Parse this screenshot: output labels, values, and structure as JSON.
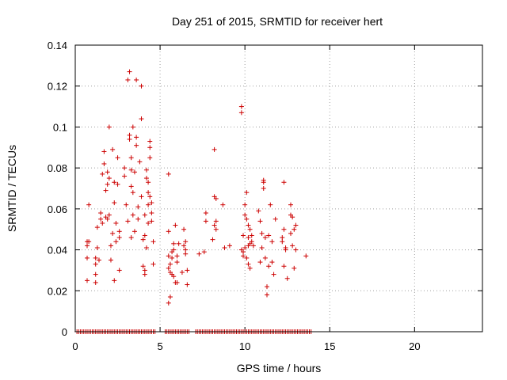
{
  "chart_data": {
    "type": "scatter",
    "title": "Day 251 of 2015, SRMTID for receiver hert",
    "xlabel": "GPS time / hours",
    "ylabel": "SRMTID / TECUs",
    "xlim": [
      0,
      24
    ],
    "ylim": [
      0,
      0.14
    ],
    "xticks": [
      "0",
      "5",
      "10",
      "15",
      "20"
    ],
    "yticks": [
      "0",
      "0.02",
      "0.04",
      "0.06",
      "0.08",
      "0.1",
      "0.12",
      "0.14"
    ],
    "grid": true,
    "legend": "none",
    "marker": "+",
    "color": "#cc0000",
    "series": [
      {
        "values": [
          [
            0.7,
            0.025
          ],
          [
            0.7,
            0.036
          ],
          [
            0.7,
            0.042
          ],
          [
            0.7,
            0.044
          ],
          [
            0.8,
            0.062
          ],
          [
            0.8,
            0.044
          ],
          [
            1.2,
            0.024
          ],
          [
            1.2,
            0.028
          ],
          [
            1.2,
            0.033
          ],
          [
            1.2,
            0.036
          ],
          [
            1.3,
            0.041
          ],
          [
            1.3,
            0.051
          ],
          [
            1.4,
            0.035
          ],
          [
            1.5,
            0.055
          ],
          [
            1.5,
            0.058
          ],
          [
            1.6,
            0.077
          ],
          [
            1.6,
            0.053
          ],
          [
            1.7,
            0.082
          ],
          [
            1.7,
            0.088
          ],
          [
            1.8,
            0.069
          ],
          [
            1.8,
            0.056
          ],
          [
            1.9,
            0.055
          ],
          [
            1.9,
            0.072
          ],
          [
            1.9,
            0.078
          ],
          [
            2.0,
            0.1
          ],
          [
            2.0,
            0.057
          ],
          [
            2.0,
            0.075
          ],
          [
            2.1,
            0.035
          ],
          [
            2.1,
            0.042
          ],
          [
            2.2,
            0.048
          ],
          [
            2.2,
            0.089
          ],
          [
            2.3,
            0.025
          ],
          [
            2.3,
            0.063
          ],
          [
            2.3,
            0.073
          ],
          [
            2.4,
            0.044
          ],
          [
            2.4,
            0.053
          ],
          [
            2.5,
            0.085
          ],
          [
            2.5,
            0.072
          ],
          [
            2.6,
            0.03
          ],
          [
            2.6,
            0.046
          ],
          [
            2.6,
            0.049
          ],
          [
            2.9,
            0.076
          ],
          [
            2.9,
            0.08
          ],
          [
            3.0,
            0.062
          ],
          [
            3.1,
            0.123
          ],
          [
            3.1,
            0.054
          ],
          [
            3.2,
            0.127
          ],
          [
            3.2,
            0.096
          ],
          [
            3.2,
            0.094
          ],
          [
            3.3,
            0.046
          ],
          [
            3.3,
            0.085
          ],
          [
            3.3,
            0.071
          ],
          [
            3.3,
            0.079
          ],
          [
            3.4,
            0.1
          ],
          [
            3.4,
            0.068
          ],
          [
            3.4,
            0.057
          ],
          [
            3.5,
            0.078
          ],
          [
            3.5,
            0.049
          ],
          [
            3.6,
            0.123
          ],
          [
            3.6,
            0.091
          ],
          [
            3.6,
            0.095
          ],
          [
            3.7,
            0.061
          ],
          [
            3.7,
            0.055
          ],
          [
            3.8,
            0.083
          ],
          [
            3.9,
            0.12
          ],
          [
            3.9,
            0.104
          ],
          [
            3.9,
            0.066
          ],
          [
            4.0,
            0.032
          ],
          [
            4.0,
            0.045
          ],
          [
            4.1,
            0.03
          ],
          [
            4.1,
            0.028
          ],
          [
            4.1,
            0.057
          ],
          [
            4.1,
            0.047
          ],
          [
            4.2,
            0.079
          ],
          [
            4.2,
            0.075
          ],
          [
            4.2,
            0.041
          ],
          [
            4.3,
            0.073
          ],
          [
            4.3,
            0.068
          ],
          [
            4.3,
            0.062
          ],
          [
            4.3,
            0.053
          ],
          [
            4.4,
            0.093
          ],
          [
            4.4,
            0.09
          ],
          [
            4.4,
            0.085
          ],
          [
            4.4,
            0.066
          ],
          [
            4.5,
            0.058
          ],
          [
            4.5,
            0.054
          ],
          [
            4.5,
            0.063
          ],
          [
            4.6,
            0.044
          ],
          [
            4.6,
            0.033
          ],
          [
            5.5,
            0.077
          ],
          [
            5.5,
            0.049
          ],
          [
            5.5,
            0.037
          ],
          [
            5.5,
            0.031
          ],
          [
            5.5,
            0.014
          ],
          [
            5.6,
            0.017
          ],
          [
            5.6,
            0.033
          ],
          [
            5.6,
            0.029
          ],
          [
            5.7,
            0.039
          ],
          [
            5.7,
            0.036
          ],
          [
            5.7,
            0.028
          ],
          [
            5.8,
            0.04
          ],
          [
            5.8,
            0.043
          ],
          [
            5.8,
            0.027
          ],
          [
            5.9,
            0.024
          ],
          [
            5.9,
            0.052
          ],
          [
            6.0,
            0.037
          ],
          [
            6.0,
            0.034
          ],
          [
            6.0,
            0.024
          ],
          [
            6.1,
            0.043
          ],
          [
            6.3,
            0.029
          ],
          [
            6.4,
            0.05
          ],
          [
            6.4,
            0.042
          ],
          [
            6.5,
            0.04
          ],
          [
            6.5,
            0.038
          ],
          [
            6.5,
            0.044
          ],
          [
            6.6,
            0.03
          ],
          [
            6.6,
            0.023
          ],
          [
            7.3,
            0.038
          ],
          [
            7.6,
            0.039
          ],
          [
            7.7,
            0.058
          ],
          [
            7.7,
            0.054
          ],
          [
            8.1,
            0.045
          ],
          [
            8.2,
            0.066
          ],
          [
            8.2,
            0.089
          ],
          [
            8.2,
            0.052
          ],
          [
            8.3,
            0.05
          ],
          [
            8.3,
            0.065
          ],
          [
            8.3,
            0.054
          ],
          [
            8.7,
            0.062
          ],
          [
            8.8,
            0.041
          ],
          [
            9.1,
            0.042
          ],
          [
            9.8,
            0.107
          ],
          [
            9.8,
            0.11
          ],
          [
            9.8,
            0.04
          ],
          [
            9.9,
            0.039
          ],
          [
            9.9,
            0.047
          ],
          [
            9.9,
            0.037
          ],
          [
            10.0,
            0.062
          ],
          [
            10.0,
            0.057
          ],
          [
            10.0,
            0.041
          ],
          [
            10.1,
            0.068
          ],
          [
            10.1,
            0.055
          ],
          [
            10.1,
            0.036
          ],
          [
            10.2,
            0.052
          ],
          [
            10.2,
            0.046
          ],
          [
            10.2,
            0.042
          ],
          [
            10.2,
            0.033
          ],
          [
            10.3,
            0.05
          ],
          [
            10.3,
            0.043
          ],
          [
            10.3,
            0.031
          ],
          [
            10.4,
            0.044
          ],
          [
            10.4,
            0.047
          ],
          [
            10.5,
            0.042
          ],
          [
            10.8,
            0.059
          ],
          [
            10.9,
            0.054
          ],
          [
            10.9,
            0.034
          ],
          [
            11.0,
            0.048
          ],
          [
            11.0,
            0.041
          ],
          [
            11.1,
            0.074
          ],
          [
            11.1,
            0.07
          ],
          [
            11.1,
            0.073
          ],
          [
            11.2,
            0.046
          ],
          [
            11.2,
            0.036
          ],
          [
            11.3,
            0.022
          ],
          [
            11.3,
            0.018
          ],
          [
            11.4,
            0.032
          ],
          [
            11.4,
            0.047
          ],
          [
            11.5,
            0.062
          ],
          [
            11.6,
            0.044
          ],
          [
            11.6,
            0.034
          ],
          [
            11.7,
            0.028
          ],
          [
            11.8,
            0.055
          ],
          [
            12.2,
            0.046
          ],
          [
            12.2,
            0.044
          ],
          [
            12.3,
            0.073
          ],
          [
            12.3,
            0.05
          ],
          [
            12.3,
            0.032
          ],
          [
            12.4,
            0.041
          ],
          [
            12.4,
            0.04
          ],
          [
            12.5,
            0.026
          ],
          [
            12.7,
            0.062
          ],
          [
            12.7,
            0.057
          ],
          [
            12.7,
            0.048
          ],
          [
            12.8,
            0.042
          ],
          [
            12.8,
            0.056
          ],
          [
            12.9,
            0.031
          ],
          [
            12.9,
            0.05
          ],
          [
            13.0,
            0.052
          ],
          [
            13.0,
            0.04
          ],
          [
            13.6,
            0.037
          ]
        ]
      }
    ],
    "zero_row": {
      "x_from": 0.1,
      "x_to": 13.9,
      "x_step": 0.1,
      "y": 0,
      "gaps": [
        [
          4.7,
          5.2
        ],
        [
          6.7,
          7.0
        ]
      ]
    }
  }
}
